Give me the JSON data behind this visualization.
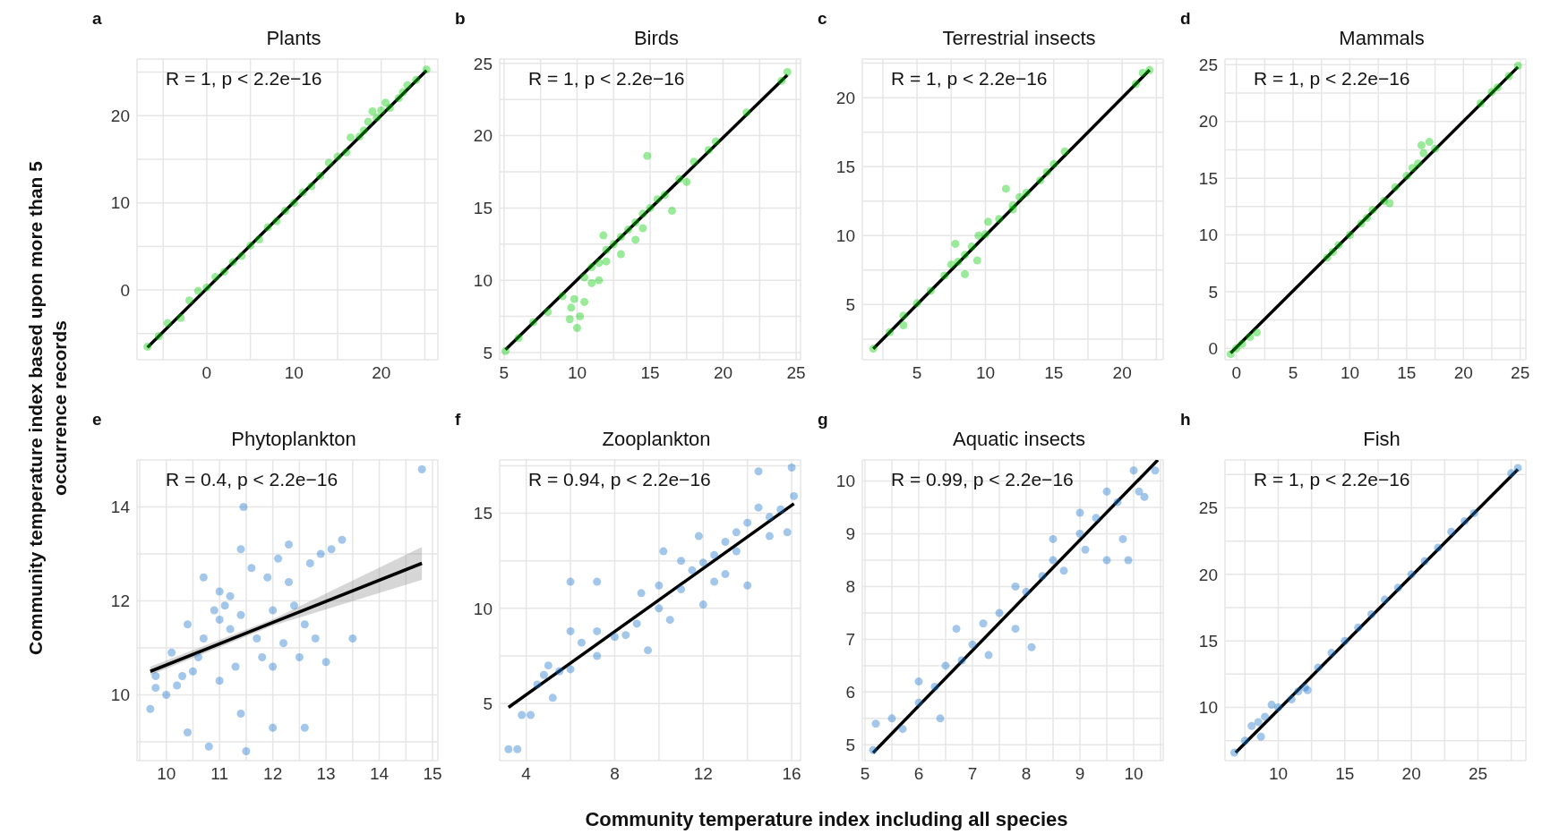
{
  "chart_data": [
    {
      "type": "scatter",
      "title": "Plants",
      "annotations": [
        "a",
        "R = 1, p < 2.2e−16"
      ],
      "grid": true,
      "xlim": [
        -8,
        26.5
      ],
      "ylim": [
        -8,
        26.5
      ],
      "xticks": [
        {
          "value": -5,
          "label": null
        },
        0,
        {
          "value": 5,
          "label": null
        },
        10,
        {
          "value": 15,
          "label": null
        },
        20,
        {
          "value": 25,
          "label": null
        }
      ],
      "yticks": [
        {
          "value": -5,
          "label": null
        },
        0,
        {
          "value": 5,
          "label": null
        },
        10,
        {
          "value": 15,
          "label": null
        },
        20,
        {
          "value": 25,
          "label": null
        }
      ],
      "series": [
        {
          "marker": "circle",
          "color": "#00cc00",
          "x": [
            -6.8,
            -5.5,
            -4.5,
            -3,
            -2,
            -1,
            0,
            1,
            2,
            3,
            4,
            5,
            6,
            7,
            8,
            9,
            10,
            11,
            12,
            13,
            14,
            15,
            16,
            16.5,
            17.5,
            18,
            18.5,
            19,
            19.5,
            20,
            20.5,
            21,
            22,
            22.5,
            23,
            24,
            25.2
          ],
          "values": [
            -6.5,
            -5.3,
            -3.8,
            -3.2,
            -1.2,
            -0.1,
            0.3,
            1.5,
            2.1,
            3.2,
            3.9,
            5.1,
            5.8,
            7.2,
            7.9,
            9.1,
            10,
            11.2,
            11.9,
            13.1,
            14.6,
            15.3,
            15.8,
            17.5,
            17.6,
            18.3,
            19.3,
            20.5,
            19.8,
            20.6,
            21.5,
            20.9,
            22,
            22.7,
            23.5,
            24.1,
            25.3
          ]
        },
        {
          "type": "line",
          "color": "#000000",
          "x": [
            -6.8,
            25.2
          ],
          "values": [
            -6.6,
            25.2
          ]
        }
      ]
    },
    {
      "type": "scatter",
      "title": "Birds",
      "annotations": [
        "b",
        "R = 1, p < 2.2e−16"
      ],
      "grid": true,
      "xlim": [
        4.7,
        25.3
      ],
      "ylim": [
        4.5,
        25.3
      ],
      "xticks": [
        5,
        {
          "value": 7.5,
          "label": null
        },
        10,
        {
          "value": 12.5,
          "label": null
        },
        15,
        {
          "value": 17.5,
          "label": null
        },
        20,
        {
          "value": 22.5,
          "label": null
        },
        25
      ],
      "yticks": [
        5,
        {
          "value": 7.5,
          "label": null
        },
        10,
        {
          "value": 12.5,
          "label": null
        },
        15,
        {
          "value": 17.5,
          "label": null
        },
        20,
        {
          "value": 22.5,
          "label": null
        },
        25
      ],
      "series": [
        {
          "marker": "circle",
          "color": "#00cc00",
          "x": [
            5.1,
            6,
            7,
            8,
            9,
            9.5,
            9.6,
            10,
            10.2,
            9.8,
            10.5,
            10.5,
            11,
            11,
            11.5,
            11.5,
            12,
            12,
            12.5,
            13,
            13,
            13.5,
            14,
            14,
            14.5,
            14.5,
            14.8,
            15,
            15.5,
            16,
            16.5,
            17,
            17.5,
            18,
            19,
            19.5,
            21.6,
            24,
            24.4,
            11.8
          ],
          "values": [
            5.1,
            6,
            7.1,
            7.8,
            8.9,
            7.3,
            8.1,
            6.7,
            7.5,
            8.7,
            8.5,
            10.2,
            9.8,
            10.9,
            11.2,
            10,
            12.1,
            11.3,
            12.5,
            13,
            11.8,
            13.5,
            14,
            12.8,
            14.6,
            13.6,
            18.6,
            15,
            15.6,
            15.9,
            14.8,
            17,
            16.8,
            18.2,
            19,
            19.6,
            21.6,
            23.8,
            24.4,
            13.1
          ]
        },
        {
          "type": "line",
          "color": "#000000",
          "x": [
            5.1,
            24.4
          ],
          "values": [
            5.2,
            24.2
          ]
        }
      ]
    },
    {
      "type": "scatter",
      "title": "Terrestrial insects",
      "annotations": [
        "c",
        "R = 1, p < 2.2e−16"
      ],
      "grid": true,
      "xlim": [
        1,
        23
      ],
      "ylim": [
        1,
        22.8
      ],
      "xticks": [
        {
          "value": 2.5,
          "label": null
        },
        5,
        {
          "value": 7.5,
          "label": null
        },
        10,
        {
          "value": 12.5,
          "label": null
        },
        15,
        {
          "value": 17.5,
          "label": null
        },
        20,
        {
          "value": 22.5,
          "label": null
        }
      ],
      "yticks": [
        {
          "value": 2.5,
          "label": null
        },
        5,
        {
          "value": 7.5,
          "label": null
        },
        10,
        {
          "value": 12.5,
          "label": null
        },
        15,
        {
          "value": 17.5,
          "label": null
        },
        20,
        {
          "value": 22.5,
          "label": null
        }
      ],
      "series": [
        {
          "marker": "circle",
          "color": "#00cc00",
          "x": [
            1.8,
            3,
            4,
            4,
            5,
            6,
            7,
            7.5,
            7.8,
            8,
            8.5,
            8.5,
            9,
            9.4,
            9.5,
            10,
            10.2,
            11,
            11.5,
            12,
            12,
            12.5,
            13,
            14,
            14.5,
            15,
            15.8,
            21,
            21.5,
            22
          ],
          "values": [
            1.8,
            3,
            3.5,
            4.2,
            5.1,
            6,
            7.1,
            7.9,
            9.4,
            8.1,
            7.2,
            8.6,
            9.2,
            8.2,
            10,
            10.1,
            11,
            11.2,
            13.4,
            12.2,
            11.9,
            12.8,
            13.1,
            14,
            14.6,
            15.2,
            16.1,
            21,
            21.8,
            22
          ]
        },
        {
          "type": "line",
          "color": "#000000",
          "x": [
            1.8,
            22
          ],
          "values": [
            1.8,
            22
          ]
        }
      ]
    },
    {
      "type": "scatter",
      "title": "Mammals",
      "annotations": [
        "d",
        "R = 1, p < 2.2e−16"
      ],
      "grid": true,
      "xlim": [
        -1,
        25.5
      ],
      "ylim": [
        -1,
        25.5
      ],
      "xticks": [
        0,
        {
          "value": 2.5,
          "label": null
        },
        5,
        {
          "value": 7.5,
          "label": null
        },
        10,
        {
          "value": 12.5,
          "label": null
        },
        15,
        {
          "value": 17.5,
          "label": null
        },
        20,
        {
          "value": 22.5,
          "label": null
        },
        25
      ],
      "yticks": [
        0,
        {
          "value": 2.5,
          "label": null
        },
        5,
        {
          "value": 7.5,
          "label": null
        },
        10,
        {
          "value": 12.5,
          "label": null
        },
        15,
        {
          "value": 17.5,
          "label": null
        },
        20,
        {
          "value": 22.5,
          "label": null
        },
        25
      ],
      "series": [
        {
          "marker": "circle",
          "color": "#00cc00",
          "x": [
            -0.5,
            0,
            0.5,
            1.2,
            1.8,
            8,
            8.5,
            9,
            10,
            11,
            11.5,
            12,
            13,
            13.5,
            14,
            15,
            15.5,
            16,
            16.5,
            16.3,
            17,
            17.5,
            21.5,
            22.5,
            23,
            24,
            24.8
          ],
          "values": [
            -0.5,
            0,
            0.4,
            1,
            1.4,
            8,
            8.5,
            9.1,
            10,
            11,
            11.5,
            12.2,
            13,
            12.8,
            14.2,
            15.2,
            15.9,
            16.3,
            17.2,
            17.9,
            18.2,
            17.6,
            21.6,
            22.6,
            23,
            24,
            24.9
          ]
        },
        {
          "type": "line",
          "color": "#000000",
          "x": [
            -0.5,
            24.8
          ],
          "values": [
            -0.4,
            24.8
          ]
        }
      ]
    },
    {
      "type": "scatter",
      "title": "Phytoplankton",
      "annotations": [
        "e",
        "R = 0.4, p < 2.2e−16"
      ],
      "ylabel": "Community temperature index based upon more than 5 occurrence records",
      "grid": true,
      "xlim": [
        9.45,
        15.1
      ],
      "ylim": [
        8.6,
        15
      ],
      "xticks": [
        {
          "value": 9.5,
          "label": null
        },
        10,
        {
          "value": 10.5,
          "label": null
        },
        11,
        {
          "value": 11.5,
          "label": null
        },
        12,
        {
          "value": 12.5,
          "label": null
        },
        13,
        {
          "value": 13.5,
          "label": null
        },
        14,
        {
          "value": 14.5,
          "label": null
        },
        15
      ],
      "yticks": [
        {
          "value": 9,
          "label": null
        },
        10,
        {
          "value": 11,
          "label": null
        },
        12,
        {
          "value": 13,
          "label": null
        },
        14,
        {
          "value": 15,
          "label": null
        }
      ],
      "series": [
        {
          "marker": "circle",
          "color": "#1874cd",
          "x": [
            9.7,
            9.8,
            9.8,
            10,
            10.1,
            10.2,
            10.3,
            10.4,
            10.4,
            10.5,
            10.6,
            10.7,
            10.7,
            10.8,
            10.9,
            11,
            11,
            11,
            11.1,
            11.2,
            11.2,
            11.3,
            11.4,
            11.4,
            11.45,
            11.4,
            11.5,
            11.6,
            11.7,
            11.8,
            11.9,
            12,
            12,
            12,
            12.1,
            12.2,
            12.3,
            12.3,
            12.4,
            12.5,
            12.6,
            12.6,
            12.7,
            12.8,
            12.9,
            13,
            13.1,
            13.3,
            13.5,
            14.8
          ],
          "values": [
            9.7,
            10.15,
            10.4,
            10,
            10.9,
            10.2,
            10.4,
            11.5,
            9.2,
            10.5,
            10.8,
            11.2,
            12.5,
            8.9,
            11.8,
            10.3,
            11.6,
            12.2,
            11.9,
            11.4,
            12.1,
            10.6,
            11.7,
            9.6,
            14,
            13.1,
            8.8,
            12.7,
            11.2,
            10.8,
            12.5,
            9.3,
            11.8,
            10.6,
            12.9,
            11.1,
            12.4,
            13.2,
            11.9,
            10.8,
            11.5,
            9.3,
            12.8,
            11.2,
            13,
            10.7,
            13.1,
            13.3,
            11.2,
            14.8
          ]
        },
        {
          "type": "line",
          "color": "#000000",
          "x": [
            9.7,
            12,
            14.8
          ],
          "values": [
            10.5,
            11.54,
            12.8
          ],
          "lower": [
            10.42,
            11.47,
            12.45
          ],
          "upper": [
            10.6,
            11.61,
            13.15
          ]
        }
      ]
    },
    {
      "type": "scatter",
      "title": "Zooplankton",
      "annotations": [
        "f",
        "R = 0.94, p < 2.2e−16"
      ],
      "grid": true,
      "xlim": [
        2.8,
        16.4
      ],
      "ylim": [
        2,
        17.8
      ],
      "xticks": [
        4,
        {
          "value": 6,
          "label": null
        },
        8,
        {
          "value": 10,
          "label": null
        },
        12,
        {
          "value": 14,
          "label": null
        },
        16
      ],
      "yticks": [
        5,
        {
          "value": 7.5,
          "label": null
        },
        10,
        {
          "value": 12.5,
          "label": null
        },
        15,
        {
          "value": 17.5,
          "label": null
        }
      ],
      "series": [
        {
          "marker": "circle",
          "color": "#1874cd",
          "x": [
            3.2,
            3.6,
            3.8,
            4.2,
            4.5,
            4.8,
            5,
            5.2,
            5.5,
            6,
            6,
            6,
            6.5,
            7.2,
            7.2,
            7.2,
            8,
            8.5,
            9,
            9.2,
            9.5,
            10,
            10,
            10.2,
            10.5,
            11,
            11,
            11.5,
            11.8,
            12,
            12,
            12.5,
            12.5,
            13,
            13,
            13.5,
            13.5,
            14,
            14,
            14.5,
            14.5,
            15,
            15,
            15.5,
            15.8,
            16,
            16.1
          ],
          "values": [
            2.6,
            2.6,
            4.4,
            4.4,
            6,
            6.5,
            7,
            5.3,
            6.7,
            6.8,
            8.8,
            11.4,
            8.2,
            11.4,
            8.8,
            7.5,
            8.5,
            8.6,
            9.2,
            10.8,
            7.8,
            10,
            11.2,
            13,
            9.4,
            11,
            12.5,
            12,
            13.8,
            12.4,
            10.2,
            12.8,
            11.4,
            13.5,
            11.8,
            14,
            13,
            11.2,
            14.5,
            15.3,
            17.2,
            14.8,
            13.8,
            15.2,
            14,
            17.4,
            15.9
          ]
        },
        {
          "type": "line",
          "color": "#000000",
          "x": [
            3.2,
            16.1
          ],
          "values": [
            4.8,
            15.5
          ]
        }
      ]
    },
    {
      "type": "scatter",
      "title": "Aquatic insects",
      "annotations": [
        "g",
        "R = 0.99, p < 2.2e−16"
      ],
      "xlabel": "Community temperature index including all species",
      "grid": true,
      "xlim": [
        4.95,
        10.55
      ],
      "ylim": [
        4.7,
        10.4
      ],
      "xticks": [
        5,
        {
          "value": 5.5,
          "label": null
        },
        6,
        {
          "value": 6.5,
          "label": null
        },
        7,
        {
          "value": 7.5,
          "label": null
        },
        8,
        {
          "value": 8.5,
          "label": null
        },
        9,
        {
          "value": 9.5,
          "label": null
        },
        10,
        {
          "value": 10.5,
          "label": null
        }
      ],
      "yticks": [
        5,
        {
          "value": 5.5,
          "label": null
        },
        6,
        {
          "value": 6.5,
          "label": null
        },
        7,
        {
          "value": 7.5,
          "label": null
        },
        8,
        {
          "value": 8.5,
          "label": null
        },
        9,
        {
          "value": 9.5,
          "label": null
        },
        10
      ],
      "series": [
        {
          "marker": "circle",
          "color": "#1874cd",
          "x": [
            5.15,
            5.2,
            5.5,
            5.7,
            6,
            6,
            6.3,
            6.4,
            6.5,
            6.7,
            6.8,
            7,
            7.2,
            7.3,
            7.5,
            7.8,
            7.8,
            8,
            8.1,
            8.3,
            8.5,
            8.5,
            8.7,
            9,
            9,
            9.1,
            9.3,
            9.5,
            9.5,
            9.7,
            9.8,
            9.9,
            10,
            10.1,
            10.2,
            10.4
          ],
          "values": [
            4.9,
            5.4,
            5.5,
            5.3,
            5.8,
            6.2,
            6.1,
            5.5,
            6.5,
            7.2,
            6.6,
            6.9,
            7.3,
            6.7,
            7.5,
            8,
            7.2,
            7.9,
            6.85,
            8.2,
            8.5,
            8.9,
            8.3,
            9,
            9.4,
            8.7,
            9.3,
            8.5,
            9.8,
            9.6,
            8.9,
            8.5,
            10.2,
            9.8,
            9.7,
            10.2
          ]
        },
        {
          "type": "line",
          "color": "#000000",
          "x": [
            5.15,
            10.45
          ],
          "values": [
            4.85,
            10.4
          ]
        }
      ]
    },
    {
      "type": "scatter",
      "title": "Fish",
      "annotations": [
        "h",
        "R = 1, p < 2.2e−16"
      ],
      "grid": true,
      "xlim": [
        6,
        28.6
      ],
      "ylim": [
        6,
        28.6
      ],
      "xticks": [
        {
          "value": 7.5,
          "label": null
        },
        10,
        {
          "value": 12.5,
          "label": null
        },
        15,
        {
          "value": 17.5,
          "label": null
        },
        20,
        {
          "value": 22.5,
          "label": null
        },
        25,
        {
          "value": 27.5,
          "label": null
        }
      ],
      "yticks": [
        {
          "value": 7.5,
          "label": null
        },
        10,
        {
          "value": 12.5,
          "label": null
        },
        15,
        {
          "value": 17.5,
          "label": null
        },
        20,
        {
          "value": 22.5,
          "label": null
        },
        25,
        {
          "value": 27.5,
          "label": null
        }
      ],
      "series": [
        {
          "marker": "circle",
          "color": "#1874cd",
          "x": [
            6.7,
            7.5,
            8,
            8.5,
            8.7,
            9,
            9.5,
            10,
            11,
            11.5,
            12,
            12.2,
            13,
            14,
            15,
            16,
            17,
            18,
            19,
            20,
            21,
            22,
            23,
            24,
            24.7,
            27.5,
            28
          ],
          "values": [
            6.6,
            7.5,
            8.6,
            8.9,
            7.8,
            9.3,
            10.2,
            10,
            10.6,
            11.2,
            11.5,
            11.3,
            13,
            14.1,
            15,
            16,
            17,
            18.1,
            19,
            20,
            21,
            22,
            23.2,
            24,
            24.6,
            27.6,
            28
          ]
        },
        {
          "type": "line",
          "color": "#000000",
          "x": [
            6.8,
            28
          ],
          "values": [
            6.6,
            27.9
          ]
        }
      ]
    }
  ]
}
